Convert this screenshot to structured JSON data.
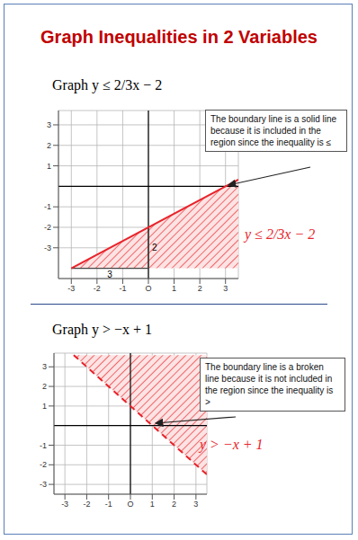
{
  "title": "Graph Inequalities in 2 Variables",
  "chart_data": [
    {
      "type": "area",
      "title": "Graph y ≤ 2/3x − 2",
      "x": [
        -3,
        3.5
      ],
      "series": [
        {
          "name": "y ≤ 2/3x − 2",
          "color": "#e8232a",
          "line_style": "solid",
          "values": [
            -4,
            0.33
          ]
        }
      ],
      "region": {
        "lower": [
          -4,
          -4
        ],
        "upper": [
          -4,
          0.33
        ]
      },
      "xlim": [
        -3.5,
        3.5
      ],
      "ylim": [
        -4.5,
        3.7
      ],
      "xticks": [
        -3,
        -2,
        -1,
        {
          "value": 0,
          "label": "O"
        },
        1,
        2,
        3
      ],
      "yticks": [
        -3,
        -2,
        -1,
        1,
        2,
        3
      ],
      "grid": true,
      "legend": false,
      "annotations": [
        {
          "text": "The boundary line is a solid line because it is included in the region since the inequality is ≤"
        }
      ],
      "rise_run": {
        "run": 3,
        "rise": 2
      }
    },
    {
      "type": "area",
      "title": "Graph y > −x + 1",
      "x": [
        -2.6,
        3.5
      ],
      "series": [
        {
          "name": "y > −x + 1",
          "color": "#e8232a",
          "line_style": "dashed",
          "values": [
            3.6,
            -2.5
          ]
        }
      ],
      "region": {
        "lower": [
          3.6,
          -2.5
        ],
        "upper": [
          3.6,
          3.6
        ]
      },
      "xlim": [
        -3.5,
        3.5
      ],
      "ylim": [
        -3.5,
        3.7
      ],
      "xticks": [
        -3,
        -2,
        -1,
        {
          "value": 0,
          "label": "O"
        },
        1,
        2,
        3
      ],
      "yticks": [
        -3,
        -2,
        -1,
        1,
        2,
        3
      ],
      "grid": true,
      "legend": false,
      "annotations": [
        {
          "text": "The boundary line is a broken line because it is not included in the region since the inequality is >"
        }
      ]
    }
  ]
}
